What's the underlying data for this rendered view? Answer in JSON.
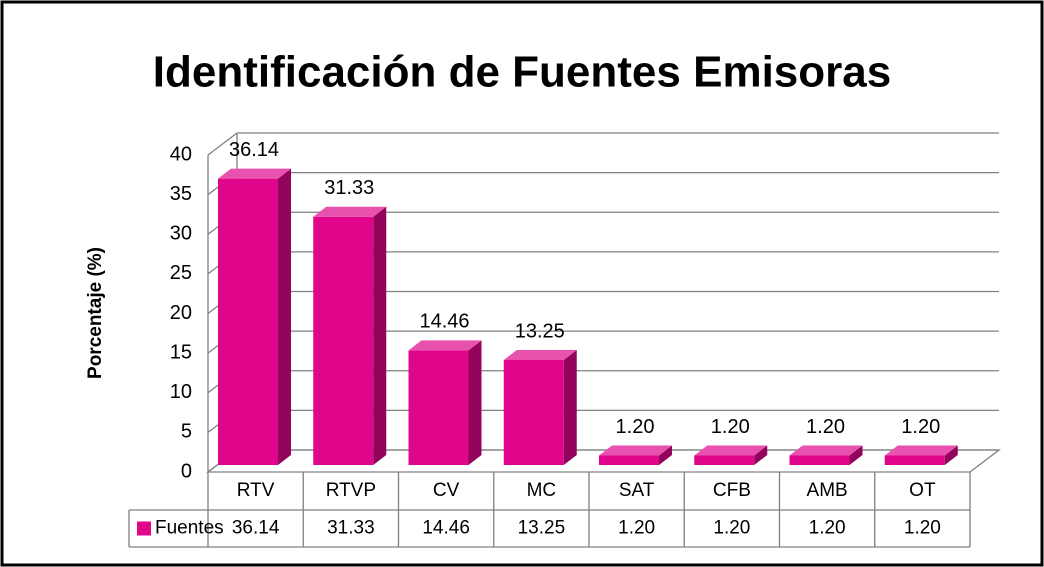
{
  "chart_data": {
    "type": "bar",
    "title": "Identificación de Fuentes Emisoras",
    "y_label": "Porcentaje (%)",
    "categories": [
      "RTV",
      "RTVP",
      "CV",
      "MC",
      "SAT",
      "CFB",
      "AMB",
      "OT"
    ],
    "series": [
      {
        "name": "Fuentes",
        "color": "#e0068c",
        "values": [
          36.14,
          31.33,
          14.46,
          13.25,
          1.2,
          1.2,
          1.2,
          1.2
        ],
        "value_labels": [
          "36.14",
          "31.33",
          "14.46",
          "13.25",
          "1.20",
          "1.20",
          "1.20",
          "1.20"
        ]
      }
    ],
    "ylim": [
      0,
      40
    ],
    "yticks": [
      0,
      5,
      10,
      15,
      20,
      25,
      30,
      35,
      40
    ],
    "grid": true,
    "data_table": true
  }
}
